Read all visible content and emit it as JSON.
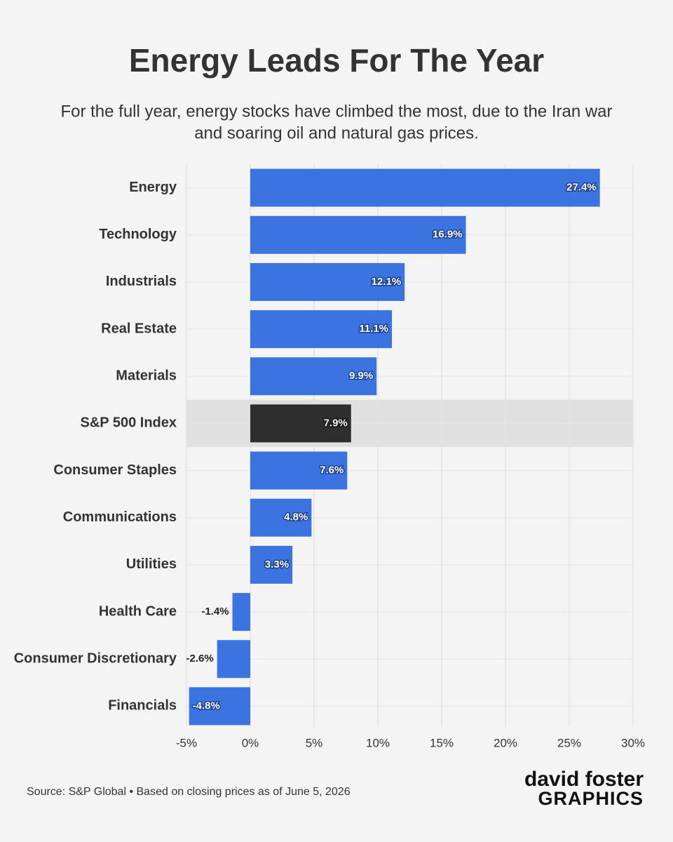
{
  "chart_data": {
    "type": "hbar",
    "title": "Energy Leads For The Year",
    "subtitle": [
      "For the full year, energy stocks have climbed the most, due to the Iran war",
      "and soaring oil and natural gas prices."
    ],
    "categories": [
      "Energy",
      "Technology",
      "Industrials",
      "Real Estate",
      "Materials",
      "S&P 500 Index",
      "Consumer Staples",
      "Communications",
      "Utilities",
      "Health Care",
      "Consumer Discretionary",
      "Financials"
    ],
    "values": [
      27.4,
      16.9,
      12.1,
      11.1,
      9.9,
      7.9,
      7.6,
      4.8,
      3.3,
      -1.4,
      -2.6,
      -4.8
    ],
    "value_labels": [
      "27.4%",
      "16.9%",
      "12.1%",
      "11.1%",
      "9.9%",
      "7.9%",
      "7.6%",
      "4.8%",
      "3.3%",
      "-1.4%",
      "-2.6%",
      "-4.8%"
    ],
    "color": "#3b73e0",
    "highlight": "S&P 500 Index",
    "highlight_color": "#2e2e2e",
    "xlim": [
      -5,
      30
    ],
    "xticks": [
      {
        "value": -5,
        "label": "-5%"
      },
      {
        "value": 0,
        "label": "0%"
      },
      {
        "value": 5,
        "label": "5%"
      },
      {
        "value": 10,
        "label": "10%"
      },
      {
        "value": 15,
        "label": "15%"
      },
      {
        "value": 20,
        "label": "20%"
      },
      {
        "value": 25,
        "label": "25%"
      },
      {
        "value": 30,
        "label": "30%"
      }
    ],
    "grid": true,
    "source": "Source: S&P Global • Based on closing prices as of June 5, 2026",
    "branding": [
      "david foster",
      "GRAPHICS"
    ]
  }
}
